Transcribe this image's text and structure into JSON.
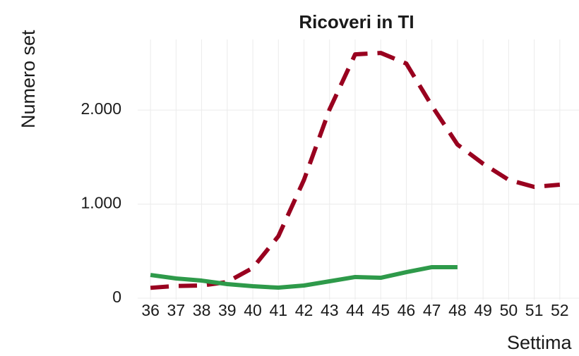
{
  "chart_data": {
    "type": "line",
    "title": "Ricoveri in TI",
    "y_label": "Numero set",
    "x_label": "Settima",
    "x": [
      36,
      37,
      38,
      39,
      40,
      41,
      42,
      43,
      44,
      45,
      46,
      47,
      48,
      49,
      50,
      51,
      52
    ],
    "series": [
      {
        "color": "#99001f",
        "dashed": true,
        "values": [
          110,
          130,
          135,
          172,
          322,
          659,
          1258,
          2007,
          2592,
          2607,
          2494,
          2045,
          1633,
          1430,
          1258,
          1183,
          1206
        ]
      },
      {
        "color": "#2e9a4a",
        "dashed": false,
        "values": [
          247,
          210,
          187,
          150,
          127,
          112,
          135,
          180,
          225,
          217,
          277,
          330,
          330,
          null,
          null,
          null,
          null
        ]
      }
    ],
    "xlim": [
      35.5,
      52.75
    ],
    "xticks": [
      36,
      37,
      38,
      39,
      40,
      41,
      42,
      43,
      44,
      45,
      46,
      47,
      48,
      49,
      50,
      51,
      52
    ],
    "ylim": [
      0,
      2750
    ],
    "yticks": [
      0,
      {
        "value": 1000,
        "label": "1.000"
      },
      {
        "value": 2000,
        "label": "2.000"
      }
    ],
    "grid": true
  }
}
